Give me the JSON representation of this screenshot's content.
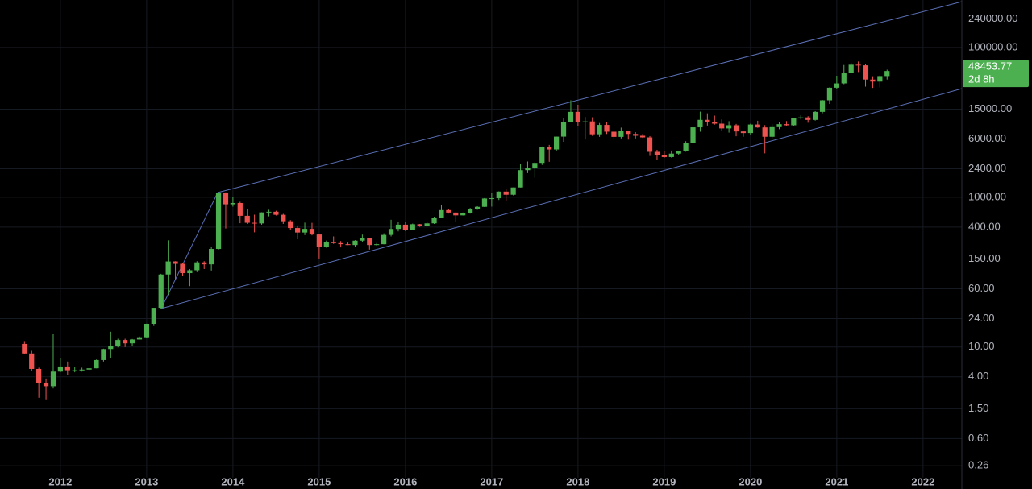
{
  "chart_data": {
    "type": "candlestick",
    "log_scale": true,
    "grid": true,
    "up_color": "#4caf50",
    "down_color": "#ef5350",
    "x": [
      "2011-08",
      "2011-09",
      "2011-10",
      "2011-11",
      "2011-12",
      "2012-01",
      "2012-02",
      "2012-03",
      "2012-04",
      "2012-05",
      "2012-06",
      "2012-07",
      "2012-08",
      "2012-09",
      "2012-10",
      "2012-11",
      "2012-12",
      "2013-01",
      "2013-02",
      "2013-03",
      "2013-04",
      "2013-05",
      "2013-06",
      "2013-07",
      "2013-08",
      "2013-09",
      "2013-10",
      "2013-11",
      "2013-12",
      "2014-01",
      "2014-02",
      "2014-03",
      "2014-04",
      "2014-05",
      "2014-06",
      "2014-07",
      "2014-08",
      "2014-09",
      "2014-10",
      "2014-11",
      "2014-12",
      "2015-01",
      "2015-02",
      "2015-03",
      "2015-04",
      "2015-05",
      "2015-06",
      "2015-07",
      "2015-08",
      "2015-09",
      "2015-10",
      "2015-11",
      "2015-12",
      "2016-01",
      "2016-02",
      "2016-03",
      "2016-04",
      "2016-05",
      "2016-06",
      "2016-07",
      "2016-08",
      "2016-09",
      "2016-10",
      "2016-11",
      "2016-12",
      "2017-01",
      "2017-02",
      "2017-03",
      "2017-04",
      "2017-05",
      "2017-06",
      "2017-07",
      "2017-08",
      "2017-09",
      "2017-10",
      "2017-11",
      "2017-12",
      "2018-01",
      "2018-02",
      "2018-03",
      "2018-04",
      "2018-05",
      "2018-06",
      "2018-07",
      "2018-08",
      "2018-09",
      "2018-10",
      "2018-11",
      "2018-12",
      "2019-01",
      "2019-02",
      "2019-03",
      "2019-04",
      "2019-05",
      "2019-06",
      "2019-07",
      "2019-08",
      "2019-09",
      "2019-10",
      "2019-11",
      "2019-12",
      "2020-01",
      "2020-02",
      "2020-03",
      "2020-04",
      "2020-05",
      "2020-06",
      "2020-07",
      "2020-08",
      "2020-09",
      "2020-10",
      "2020-11",
      "2020-12",
      "2021-01",
      "2021-02",
      "2021-03",
      "2021-04",
      "2021-05",
      "2021-06",
      "2021-07",
      "2021-08"
    ],
    "open": [
      11,
      8.2,
      5.1,
      3.3,
      3.0,
      4.7,
      5.5,
      4.9,
      4.9,
      5.0,
      5.2,
      6.7,
      9.4,
      10.2,
      12.4,
      11.2,
      12.6,
      13.5,
      20.4,
      33.4,
      93,
      139,
      129,
      97,
      106,
      135,
      127,
      204,
      1128,
      805,
      838,
      565,
      456,
      447,
      627,
      640,
      583,
      478,
      388,
      338,
      378,
      318,
      218,
      254,
      244,
      236,
      230,
      263,
      284,
      230,
      236,
      314,
      377,
      430,
      369,
      436,
      416,
      448,
      531,
      673,
      624,
      573,
      609,
      700,
      745,
      963,
      970,
      1190,
      1080,
      1350,
      2300,
      2480,
      2875,
      4700,
      4340,
      6450,
      10000,
      13800,
      10200,
      10300,
      6930,
      9240,
      7500,
      6400,
      7730,
      7000,
      6630,
      6300,
      4040,
      3700,
      3440,
      3820,
      4100,
      5330,
      8580,
      10800,
      10080,
      9600,
      8300,
      9150,
      7560,
      7200,
      9350,
      8550,
      6420,
      8630,
      9450,
      9140,
      11340,
      11650,
      10780,
      13800,
      19700,
      28990,
      33100,
      45200,
      58800,
      57700,
      37300,
      35000,
      41500
    ],
    "high": [
      12,
      8.9,
      5.3,
      3.8,
      15,
      7.2,
      6.4,
      5.4,
      5.3,
      5.2,
      6.8,
      9.5,
      16,
      12.9,
      12.9,
      12.8,
      13.8,
      20.5,
      33.4,
      95,
      266,
      140,
      131,
      110,
      140,
      140,
      220,
      1165,
      1163,
      1000,
      870,
      705,
      585,
      630,
      680,
      660,
      600,
      495,
      420,
      458,
      455,
      320,
      264,
      300,
      260,
      248,
      267,
      317,
      285,
      245,
      330,
      500,
      470,
      465,
      445,
      440,
      468,
      550,
      780,
      704,
      627,
      625,
      718,
      760,
      975,
      1150,
      1200,
      1290,
      1350,
      2760,
      3000,
      2950,
      4750,
      5000,
      6470,
      11400,
      19700,
      17200,
      11800,
      11700,
      9800,
      9990,
      7780,
      8500,
      7770,
      7400,
      7000,
      6560,
      4300,
      4100,
      4200,
      4140,
      5600,
      9000,
      13900,
      13200,
      12300,
      10950,
      10370,
      9520,
      7750,
      9580,
      10500,
      9190,
      9480,
      10080,
      10400,
      11450,
      12480,
      12080,
      14100,
      19900,
      29300,
      41950,
      58300,
      61800,
      64900,
      59600,
      41300,
      42400,
      50500
    ],
    "low": [
      8,
      4.8,
      2.1,
      2.0,
      2.8,
      4.6,
      4.2,
      4.6,
      4.7,
      4.9,
      5.2,
      6.4,
      7.1,
      9.9,
      10.0,
      10.3,
      12.6,
      13.2,
      19.1,
      32,
      50,
      80,
      88,
      65,
      100,
      110,
      105,
      200,
      382,
      750,
      450,
      440,
      340,
      430,
      555,
      570,
      440,
      365,
      275,
      312,
      310,
      152,
      212,
      238,
      214,
      230,
      220,
      253,
      200,
      225,
      235,
      300,
      350,
      352,
      366,
      402,
      414,
      440,
      530,
      605,
      470,
      570,
      604,
      680,
      740,
      750,
      920,
      890,
      1060,
      1350,
      2100,
      1830,
      2700,
      2970,
      4160,
      5500,
      10000,
      9000,
      5900,
      6600,
      6400,
      7000,
      5750,
      6100,
      5880,
      6100,
      6200,
      3560,
      3150,
      3350,
      3380,
      3700,
      4050,
      5300,
      7500,
      9060,
      9320,
      7710,
      7300,
      6520,
      6430,
      6860,
      8450,
      3850,
      6150,
      8100,
      8900,
      8980,
      10960,
      9880,
      10540,
      13200,
      17600,
      28130,
      32300,
      45000,
      47000,
      30000,
      28800,
      29300,
      37300
    ],
    "close": [
      8.2,
      5.1,
      3.3,
      3.0,
      4.7,
      5.5,
      4.9,
      4.9,
      5.0,
      5.2,
      6.7,
      9.4,
      10.2,
      12.4,
      11.2,
      12.6,
      13.5,
      20.4,
      33.4,
      93,
      139,
      129,
      97,
      106,
      135,
      127,
      204,
      1128,
      805,
      838,
      565,
      456,
      447,
      627,
      640,
      583,
      478,
      388,
      338,
      378,
      318,
      218,
      254,
      244,
      236,
      230,
      263,
      284,
      230,
      236,
      314,
      377,
      430,
      369,
      436,
      416,
      448,
      531,
      673,
      624,
      573,
      609,
      700,
      745,
      963,
      970,
      1190,
      1080,
      1350,
      2300,
      2480,
      2875,
      4700,
      4340,
      6450,
      10000,
      13800,
      10200,
      10300,
      6930,
      9240,
      7500,
      6400,
      7730,
      7000,
      6630,
      6300,
      4040,
      3700,
      3440,
      3820,
      4100,
      5330,
      8580,
      10800,
      10080,
      9600,
      8300,
      9150,
      7560,
      7200,
      9350,
      8550,
      6420,
      8630,
      9450,
      9140,
      11340,
      11650,
      10780,
      13800,
      19700,
      28990,
      33100,
      45200,
      58800,
      57700,
      37300,
      35000,
      41500,
      48453.77
    ],
    "countdown": "2d 8h",
    "ylim": [
      0.18,
      430000
    ],
    "yticks": [
      {
        "value": 0.26,
        "label": "0.26"
      },
      {
        "value": 0.6,
        "label": "0.60"
      },
      {
        "value": 1.5,
        "label": "1.50"
      },
      {
        "value": 4,
        "label": "4.00"
      },
      {
        "value": 10,
        "label": "10.00"
      },
      {
        "value": 24,
        "label": "24.00"
      },
      {
        "value": 60,
        "label": "60.00"
      },
      {
        "value": 150,
        "label": "150.00"
      },
      {
        "value": 400,
        "label": "400.00"
      },
      {
        "value": 1000,
        "label": "1000.00"
      },
      {
        "value": 2400,
        "label": "2400.00"
      },
      {
        "value": 6000,
        "label": "6000.00"
      },
      {
        "value": 15000,
        "label": "15000.00"
      },
      {
        "value": 100000,
        "label": "100000.00"
      },
      {
        "value": 240000,
        "label": "240000.00"
      }
    ],
    "xlim": [
      2011.3,
      2022.45
    ],
    "xticks": [
      2012,
      2013,
      2014,
      2015,
      2016,
      2017,
      2018,
      2019,
      2020,
      2021,
      2022
    ]
  }
}
